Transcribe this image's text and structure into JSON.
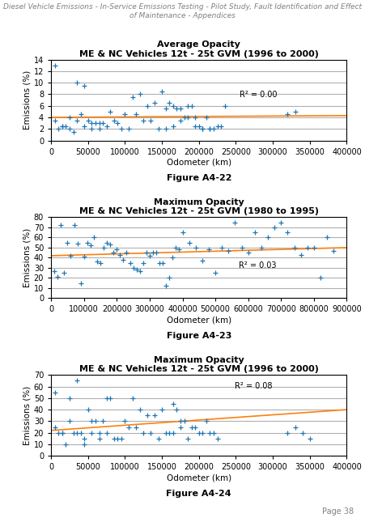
{
  "header": "Diesel Vehicle Emissions - In-Service Emissions Testing - Pilot Study, Fault Identification and Effect of Maintenance - Appendices",
  "footer": "Page 38",
  "chart_data": [
    {
      "type": "scatter",
      "title": "Average Opacity",
      "subtitle": "ME & NC Vehicles 12t - 25t GVM (1996 to 2000)",
      "caption": "Figure A4-22",
      "x_label": "Odometer (km)",
      "y_label": "Emissions (%)",
      "xlim": [
        0,
        400000
      ],
      "ylim": [
        0,
        14
      ],
      "xticks": [
        0,
        50000,
        100000,
        150000,
        200000,
        250000,
        300000,
        350000,
        400000
      ],
      "yticks": [
        0,
        2,
        4,
        6,
        8,
        10,
        12,
        14
      ],
      "grid": "y",
      "annotations": [
        {
          "text": "R² = 0.00",
          "x": 255000,
          "y": 7.5
        }
      ],
      "series": [
        {
          "type": "scatter",
          "marker": "plus",
          "x": [
            5000,
            10000,
            15000,
            20000,
            25000,
            30000,
            35000,
            40000,
            45000,
            50000,
            55000,
            60000,
            65000,
            70000,
            80000,
            90000,
            100000,
            110000,
            120000,
            130000,
            140000,
            150000,
            155000,
            160000,
            165000,
            170000,
            175000,
            180000,
            185000,
            190000,
            195000,
            200000,
            205000,
            210000,
            215000,
            220000,
            225000,
            230000,
            235000,
            5000,
            15000,
            25000,
            35000,
            45000,
            55000,
            65000,
            75000,
            85000,
            95000,
            105000,
            115000,
            125000,
            135000,
            145000,
            155000,
            165000,
            175000,
            185000,
            195000,
            205000,
            215000,
            320000,
            330000
          ],
          "values": [
            13.0,
            2.0,
            2.5,
            2.5,
            2.0,
            1.5,
            10.0,
            4.5,
            9.5,
            3.5,
            3.0,
            3.0,
            3.0,
            3.0,
            5.0,
            3.0,
            4.5,
            7.5,
            8.0,
            6.0,
            6.5,
            8.5,
            5.5,
            6.5,
            6.0,
            5.5,
            5.5,
            4.0,
            6.0,
            6.0,
            2.5,
            2.5,
            2.0,
            4.0,
            2.0,
            2.0,
            2.5,
            2.5,
            6.0,
            3.5,
            2.5,
            4.0,
            3.5,
            2.5,
            2.0,
            2.0,
            2.5,
            3.5,
            2.0,
            2.0,
            4.5,
            3.5,
            3.5,
            2.0,
            2.0,
            2.5,
            3.5,
            4.0,
            4.0,
            2.0,
            2.0,
            4.5,
            5.0
          ]
        },
        {
          "type": "line",
          "line_style": "solid",
          "x": [
            0,
            400000
          ],
          "values": [
            4.0,
            4.3
          ]
        }
      ]
    },
    {
      "type": "scatter",
      "title": "Maximum Opacity",
      "subtitle": "ME & NC Vehicles 12t - 25t GVM (1980 to 1995)",
      "caption": "Figure A4-23",
      "x_label": "Odometer (km)",
      "y_label": "Emissions (%)",
      "xlim": [
        0,
        900000
      ],
      "ylim": [
        0,
        80
      ],
      "xticks": [
        0,
        100000,
        200000,
        300000,
        400000,
        500000,
        600000,
        700000,
        800000,
        900000
      ],
      "yticks": [
        0,
        10,
        20,
        30,
        40,
        50,
        60,
        70,
        80
      ],
      "grid": "y",
      "annotations": [
        {
          "text": "R² = 0.03",
          "x": 570000,
          "y": 30
        }
      ],
      "series": [
        {
          "type": "scatter",
          "marker": "plus",
          "x": [
            10000,
            20000,
            30000,
            40000,
            50000,
            60000,
            70000,
            80000,
            90000,
            100000,
            110000,
            120000,
            130000,
            140000,
            150000,
            160000,
            170000,
            180000,
            190000,
            200000,
            210000,
            220000,
            230000,
            240000,
            250000,
            260000,
            270000,
            280000,
            290000,
            300000,
            310000,
            320000,
            330000,
            340000,
            350000,
            360000,
            370000,
            380000,
            390000,
            400000,
            420000,
            440000,
            460000,
            480000,
            500000,
            520000,
            540000,
            560000,
            580000,
            600000,
            620000,
            640000,
            660000,
            680000,
            700000,
            720000,
            740000,
            760000,
            780000,
            800000,
            820000,
            840000,
            860000
          ],
          "values": [
            27,
            21,
            72,
            25,
            55,
            42,
            72,
            54,
            15,
            41,
            55,
            52,
            60,
            36,
            35,
            50,
            55,
            53,
            45,
            48,
            43,
            38,
            45,
            35,
            30,
            28,
            27,
            35,
            45,
            42,
            45,
            45,
            35,
            35,
            12,
            20,
            40,
            50,
            48,
            65,
            55,
            50,
            37,
            48,
            25,
            50,
            47,
            75,
            50,
            45,
            65,
            50,
            60,
            70,
            75,
            65,
            50,
            43,
            50,
            50,
            20,
            60,
            47
          ]
        },
        {
          "type": "line",
          "line_style": "solid",
          "x": [
            0,
            900000
          ],
          "values": [
            42,
            50
          ]
        }
      ]
    },
    {
      "type": "scatter",
      "title": "Maximum Opacity",
      "subtitle": "ME & NC Vehicles 12t - 25t GVM (1996 to 2000)",
      "caption": "Figure A4-24",
      "x_label": "Odometer (km)",
      "y_label": "Emissions (%)",
      "xlim": [
        0,
        400000
      ],
      "ylim": [
        0,
        70
      ],
      "xticks": [
        0,
        50000,
        100000,
        150000,
        200000,
        250000,
        300000,
        350000,
        400000
      ],
      "yticks": [
        0,
        10,
        20,
        30,
        40,
        50,
        60,
        70
      ],
      "grid": "y",
      "annotations": [
        {
          "text": "R² = 0.08",
          "x": 248000,
          "y": 58
        }
      ],
      "series": [
        {
          "type": "scatter",
          "marker": "plus",
          "x": [
            5000,
            10000,
            15000,
            20000,
            25000,
            30000,
            35000,
            40000,
            45000,
            50000,
            55000,
            60000,
            65000,
            70000,
            75000,
            80000,
            90000,
            100000,
            110000,
            120000,
            130000,
            140000,
            150000,
            160000,
            165000,
            170000,
            175000,
            180000,
            185000,
            190000,
            195000,
            200000,
            205000,
            210000,
            215000,
            220000,
            225000,
            5000,
            15000,
            25000,
            35000,
            45000,
            55000,
            65000,
            75000,
            85000,
            95000,
            105000,
            115000,
            125000,
            135000,
            145000,
            155000,
            165000,
            175000,
            320000,
            330000,
            340000,
            350000
          ],
          "values": [
            55,
            20,
            20,
            10,
            50,
            20,
            65,
            20,
            15,
            40,
            30,
            30,
            20,
            30,
            50,
            50,
            15,
            30,
            50,
            40,
            35,
            35,
            40,
            20,
            45,
            40,
            30,
            30,
            15,
            25,
            25,
            20,
            20,
            30,
            20,
            20,
            15,
            25,
            20,
            30,
            20,
            10,
            20,
            15,
            20,
            15,
            15,
            25,
            25,
            20,
            20,
            15,
            20,
            20,
            25,
            20,
            25,
            20,
            15
          ]
        },
        {
          "type": "line",
          "line_style": "solid",
          "x": [
            0,
            400000
          ],
          "values": [
            22,
            40
          ]
        }
      ]
    }
  ]
}
